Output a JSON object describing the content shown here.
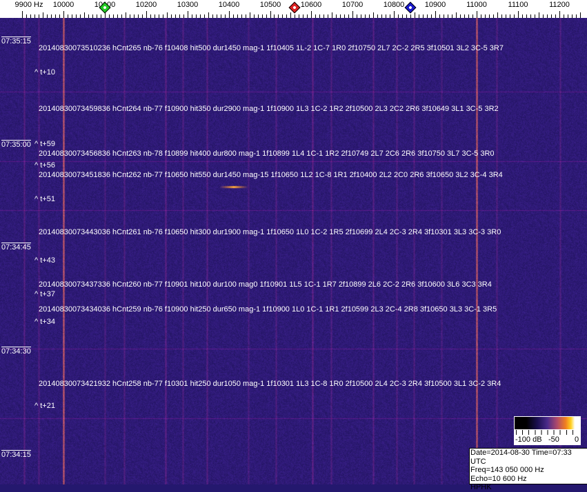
{
  "axis": {
    "unit_label": "9900 Hz",
    "freq_labels": [
      "10000",
      "10100",
      "10200",
      "10300",
      "10400",
      "10500",
      "10600",
      "10700",
      "10800",
      "10900",
      "11000",
      "11100",
      "11200"
    ],
    "markers": [
      {
        "name": "green-marker",
        "freq_hz": 10100,
        "color": "#22cc22"
      },
      {
        "name": "red-marker",
        "freq_hz": 10560,
        "color": "#dd2222"
      },
      {
        "name": "blue-marker",
        "freq_hz": 10840,
        "color": "#1a1acc"
      }
    ]
  },
  "time_labels": [
    "07:35:15",
    "07:35:00",
    "07:34:45",
    "07:34:30",
    "07:34:15"
  ],
  "events": [
    "20140830073510236 hCnt265 nb-76 f10408 hit500 dur1450 mag-1 1f10405 1L-2 1C-7 1R0 2f10750 2L7 2C-2 2R5 3f10501 3L2 3C-5 3R7",
    "20140830073459836 hCnt264 nb-77 f10900 hit350 dur2900 mag-1 1f10900 1L3 1C-2 1R2 2f10500 2L3 2C2 2R6 3f10649 3L1 3C-5 3R2",
    "20140830073456836 hCnt263 nb-78 f10899 hit400 dur800 mag-1 1f10899 1L4 1C-1 1R2 2f10749 2L7 2C6 2R6 3f10750 3L7 3C-5 3R0",
    "20140830073451836 hCnt262 nb-77 f10650 hit550 dur1450 mag-15 1f10650 1L2 1C-8 1R1 2f10400 2L2 2C0 2R6 3f10650 3L2 3C-4 3R4",
    "20140830073443036 hCnt261 nb-76 f10650 hit300 dur1900 mag-1 1f10650 1L0 1C-2 1R5 2f10699 2L4 2C-3 2R4 3f10301 3L3 3C-3 3R0",
    "20140830073437336 hCnt260 nb-77 f10901 hit100 dur100 mag0 1f10901 1L5 1C-1 1R7 2f10899 2L6 2C-2 2R6 3f10600 3L6 3C3 3R4",
    "20140830073434036 hCnt259 nb-76 f10900 hit250 dur650 mag-1 1f10900 1L0 1C-1 1R1 2f10599 2L3 2C-4 2R8 3f10650 3L3 3C-1 3R5",
    "20140830073421932 hCnt258 nb-77 f10301 hit250 dur1050 mag-1 1f10301 1L3 1C-8 1R0 2f10500 2L4 2C-3 2R4 3f10500 3L1 3C-2 3R4"
  ],
  "offsets": [
    "^ t+10",
    "^ t+59",
    "^ t+56",
    "^ t+51",
    "^ t+43",
    "^ t+37",
    "^ t+34",
    "^ t+21"
  ],
  "colorbar": {
    "labels": [
      "-100 dB",
      "-50",
      "0"
    ]
  },
  "info": {
    "date_time": "Date=2014-08-30 Time=07:33 UTC",
    "freq": "Freq=143 050 000 Hz",
    "echo": "Echo=10 600 Hz",
    "station": "HPHK"
  }
}
